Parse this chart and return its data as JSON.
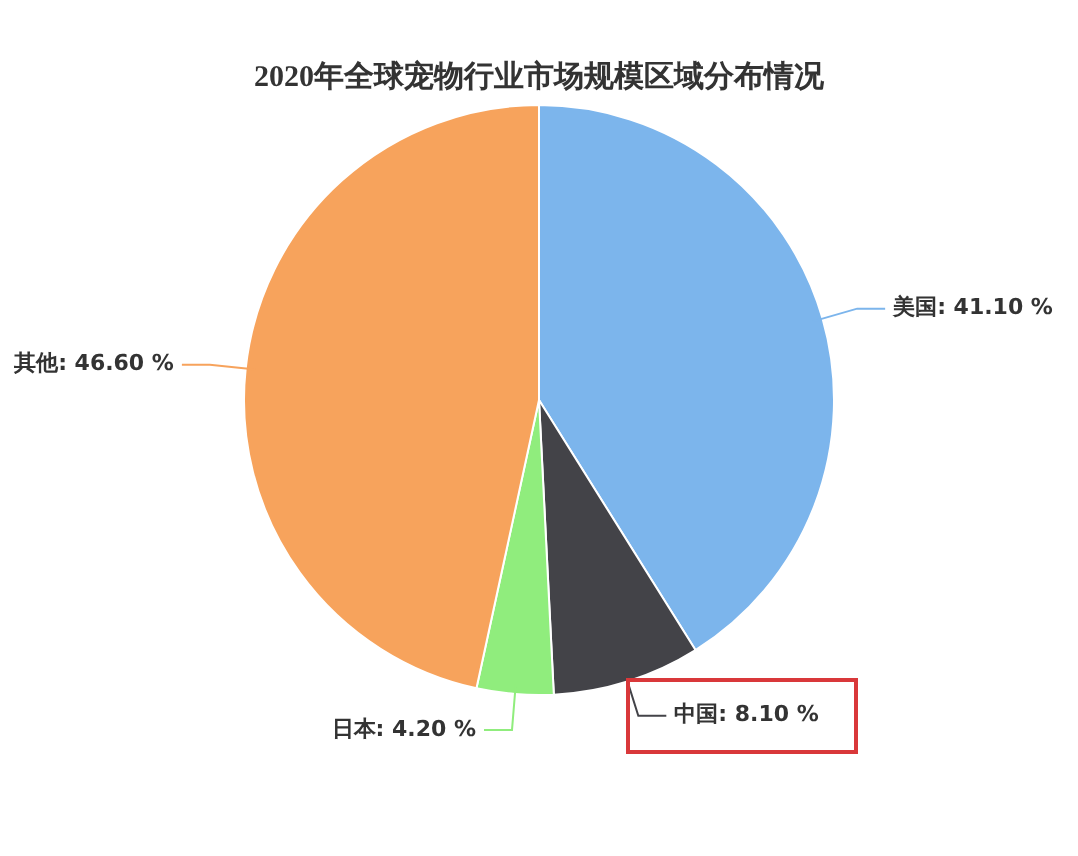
{
  "chart_data": {
    "type": "pie",
    "title": "2020年全球宠物行业市场规模区域分布情况",
    "categories": [
      "美国",
      "中国",
      "日本",
      "其他"
    ],
    "values": [
      41.1,
      8.1,
      4.2,
      46.6
    ],
    "value_labels": [
      "41.10 %",
      "8.10 %",
      "4.20 %",
      "46.60 %"
    ],
    "colors": [
      "#7cb5ec",
      "#434348",
      "#90ed7d",
      "#f7a35c"
    ],
    "legend": false
  }
}
